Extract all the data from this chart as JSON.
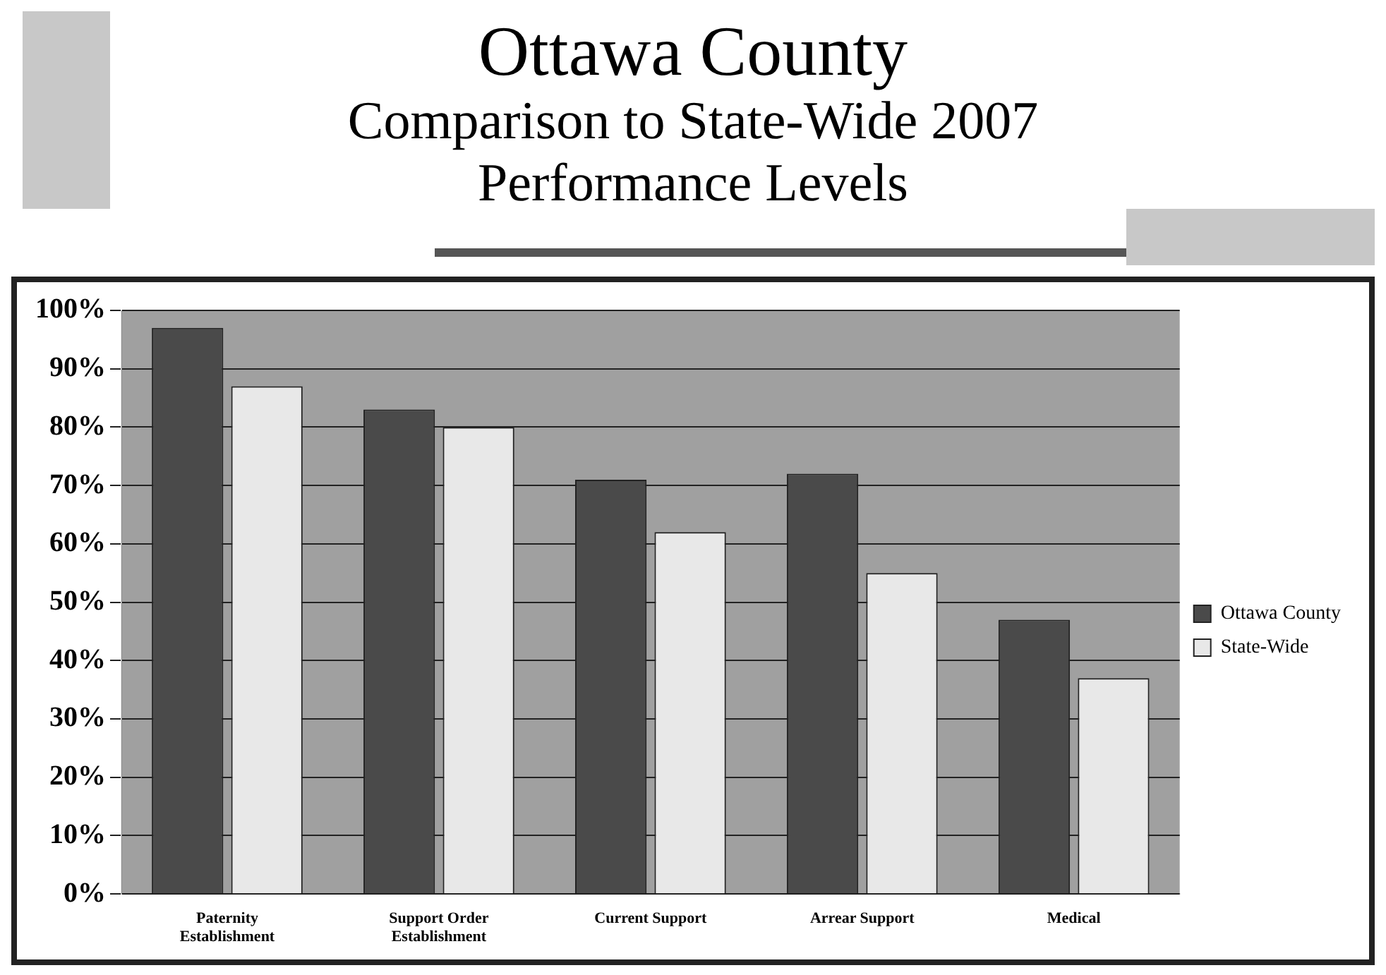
{
  "chart_data": {
    "type": "bar",
    "title": "Ottawa County",
    "subtitle": "Comparison to State-Wide 2007 Performance Levels",
    "categories": [
      "Paternity Establishment",
      "Support Order Establishment",
      "Current Support",
      "Arrear Support",
      "Medical"
    ],
    "series": [
      {
        "name": "Ottawa County",
        "color": "#4a4a4a",
        "values": [
          97,
          83,
          71,
          72,
          47
        ]
      },
      {
        "name": "State-Wide",
        "color": "#e8e8e8",
        "values": [
          87,
          80,
          62,
          55,
          37
        ]
      }
    ],
    "ylim": [
      0,
      100
    ],
    "yticks": [
      {
        "value": 0,
        "label": "0%"
      },
      {
        "value": 10,
        "label": "10%"
      },
      {
        "value": 20,
        "label": "20%"
      },
      {
        "value": 30,
        "label": "30%"
      },
      {
        "value": 40,
        "label": "40%"
      },
      {
        "value": 50,
        "label": "50%"
      },
      {
        "value": 60,
        "label": "60%"
      },
      {
        "value": 70,
        "label": "70%"
      },
      {
        "value": 80,
        "label": "80%"
      },
      {
        "value": 90,
        "label": "90%"
      },
      {
        "value": 100,
        "label": "100%"
      }
    ],
    "grid": "y",
    "legend": "right"
  }
}
